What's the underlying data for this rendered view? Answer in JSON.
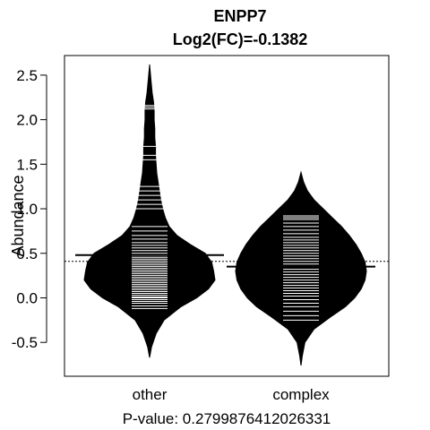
{
  "chart_data": {
    "type": "beanplot",
    "title": "ENPP7",
    "subtitle": "Log2(FC)=-0.1382",
    "xlabel": "P-value: 0.2799876412026331",
    "ylabel": "Abundance",
    "categories": [
      "other",
      "complex"
    ],
    "ylim": [
      -0.88,
      2.72
    ],
    "yticks": [
      -0.5,
      0.0,
      0.5,
      1.0,
      1.5,
      2.0,
      2.5
    ],
    "ytick_labels": [
      "-0.5",
      "0.0",
      "0.5",
      "1.0",
      "1.5",
      "2.0",
      "2.5"
    ],
    "overall_mean": 0.41,
    "groups": [
      {
        "name": "other",
        "mean": 0.48,
        "range": [
          -0.67,
          2.62
        ],
        "density": [
          [
            -0.67,
            0.0
          ],
          [
            -0.55,
            0.03
          ],
          [
            -0.4,
            0.1
          ],
          [
            -0.25,
            0.22
          ],
          [
            -0.1,
            0.48
          ],
          [
            0.0,
            0.72
          ],
          [
            0.1,
            0.9
          ],
          [
            0.2,
            1.0
          ],
          [
            0.3,
            0.98
          ],
          [
            0.4,
            0.95
          ],
          [
            0.5,
            0.85
          ],
          [
            0.6,
            0.62
          ],
          [
            0.7,
            0.42
          ],
          [
            0.8,
            0.3
          ],
          [
            0.9,
            0.24
          ],
          [
            1.0,
            0.2
          ],
          [
            1.1,
            0.17
          ],
          [
            1.2,
            0.15
          ],
          [
            1.3,
            0.13
          ],
          [
            1.4,
            0.11
          ],
          [
            1.5,
            0.1
          ],
          [
            1.6,
            0.09
          ],
          [
            1.7,
            0.09
          ],
          [
            1.8,
            0.08
          ],
          [
            1.9,
            0.08
          ],
          [
            2.0,
            0.07
          ],
          [
            2.1,
            0.07
          ],
          [
            2.2,
            0.06
          ],
          [
            2.3,
            0.04
          ],
          [
            2.45,
            0.02
          ],
          [
            2.62,
            0.0
          ]
        ],
        "points": [
          -0.12,
          -0.09,
          -0.06,
          -0.04,
          -0.02,
          0.0,
          0.01,
          0.03,
          0.05,
          0.07,
          0.09,
          0.11,
          0.13,
          0.15,
          0.17,
          0.19,
          0.21,
          0.23,
          0.25,
          0.27,
          0.29,
          0.31,
          0.33,
          0.35,
          0.37,
          0.39,
          0.41,
          0.43,
          0.45,
          0.47,
          0.5,
          0.53,
          0.56,
          0.59,
          0.62,
          0.66,
          0.7,
          0.75,
          0.8,
          1.0,
          1.05,
          1.1,
          1.15,
          1.2,
          1.25,
          1.55,
          1.6,
          1.7,
          2.12,
          2.14,
          2.16
        ]
      },
      {
        "name": "complex",
        "mean": 0.35,
        "range": [
          -0.76,
          1.41
        ],
        "density": [
          [
            -0.76,
            0.0
          ],
          [
            -0.65,
            0.02
          ],
          [
            -0.5,
            0.06
          ],
          [
            -0.35,
            0.2
          ],
          [
            -0.2,
            0.48
          ],
          [
            -0.1,
            0.68
          ],
          [
            0.0,
            0.82
          ],
          [
            0.1,
            0.92
          ],
          [
            0.2,
            0.98
          ],
          [
            0.3,
            1.0
          ],
          [
            0.4,
            0.98
          ],
          [
            0.5,
            0.92
          ],
          [
            0.6,
            0.84
          ],
          [
            0.7,
            0.74
          ],
          [
            0.8,
            0.62
          ],
          [
            0.9,
            0.48
          ],
          [
            1.0,
            0.34
          ],
          [
            1.1,
            0.2
          ],
          [
            1.2,
            0.1
          ],
          [
            1.3,
            0.04
          ],
          [
            1.41,
            0.0
          ]
        ],
        "points": [
          -0.25,
          -0.2,
          -0.15,
          -0.1,
          -0.06,
          -0.02,
          0.02,
          0.05,
          0.08,
          0.11,
          0.14,
          0.17,
          0.2,
          0.23,
          0.26,
          0.29,
          0.32,
          0.35,
          0.38,
          0.41,
          0.44,
          0.47,
          0.5,
          0.53,
          0.56,
          0.59,
          0.62,
          0.65,
          0.68,
          0.72,
          0.76,
          0.8,
          0.84,
          0.88,
          0.9,
          0.92
        ]
      }
    ]
  }
}
